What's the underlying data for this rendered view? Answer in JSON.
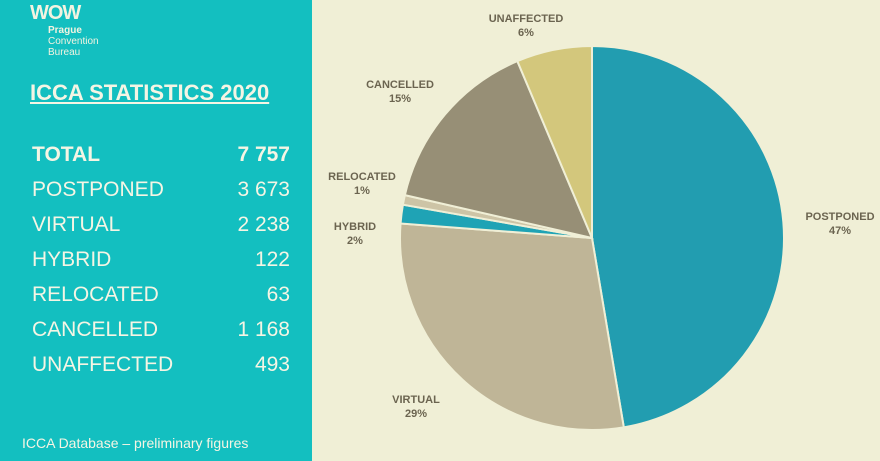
{
  "logo": {
    "text": "WOW",
    "lines": [
      "Prague",
      "Convention",
      "Bureau"
    ]
  },
  "title": "ICCA STATISTICS 2020",
  "stats": [
    {
      "label": "TOTAL",
      "value": "7 757"
    },
    {
      "label": "POSTPONED",
      "value": "3 673"
    },
    {
      "label": "VIRTUAL",
      "value": "2 238"
    },
    {
      "label": "HYBRID",
      "value": "122"
    },
    {
      "label": "RELOCATED",
      "value": "63"
    },
    {
      "label": "CANCELLED",
      "value": "1 168"
    },
    {
      "label": "UNAFFECTED",
      "value": "493"
    }
  ],
  "footer": "ICCA Database – preliminary figures",
  "chart_data": {
    "type": "pie",
    "categories": [
      "POSTPONED",
      "VIRTUAL",
      "HYBRID",
      "RELOCATED",
      "CANCELLED",
      "UNAFFECTED"
    ],
    "values": [
      3673,
      2238,
      122,
      63,
      1168,
      493
    ],
    "labels": [
      "47%",
      "29%",
      "2%",
      "1%",
      "15%",
      "6%"
    ],
    "colors": [
      "#229db0",
      "#bfb597",
      "#1fa3b5",
      "#cdc4a6",
      "#978f76",
      "#d3c77c"
    ],
    "start": "12 o'clock, clockwise"
  }
}
